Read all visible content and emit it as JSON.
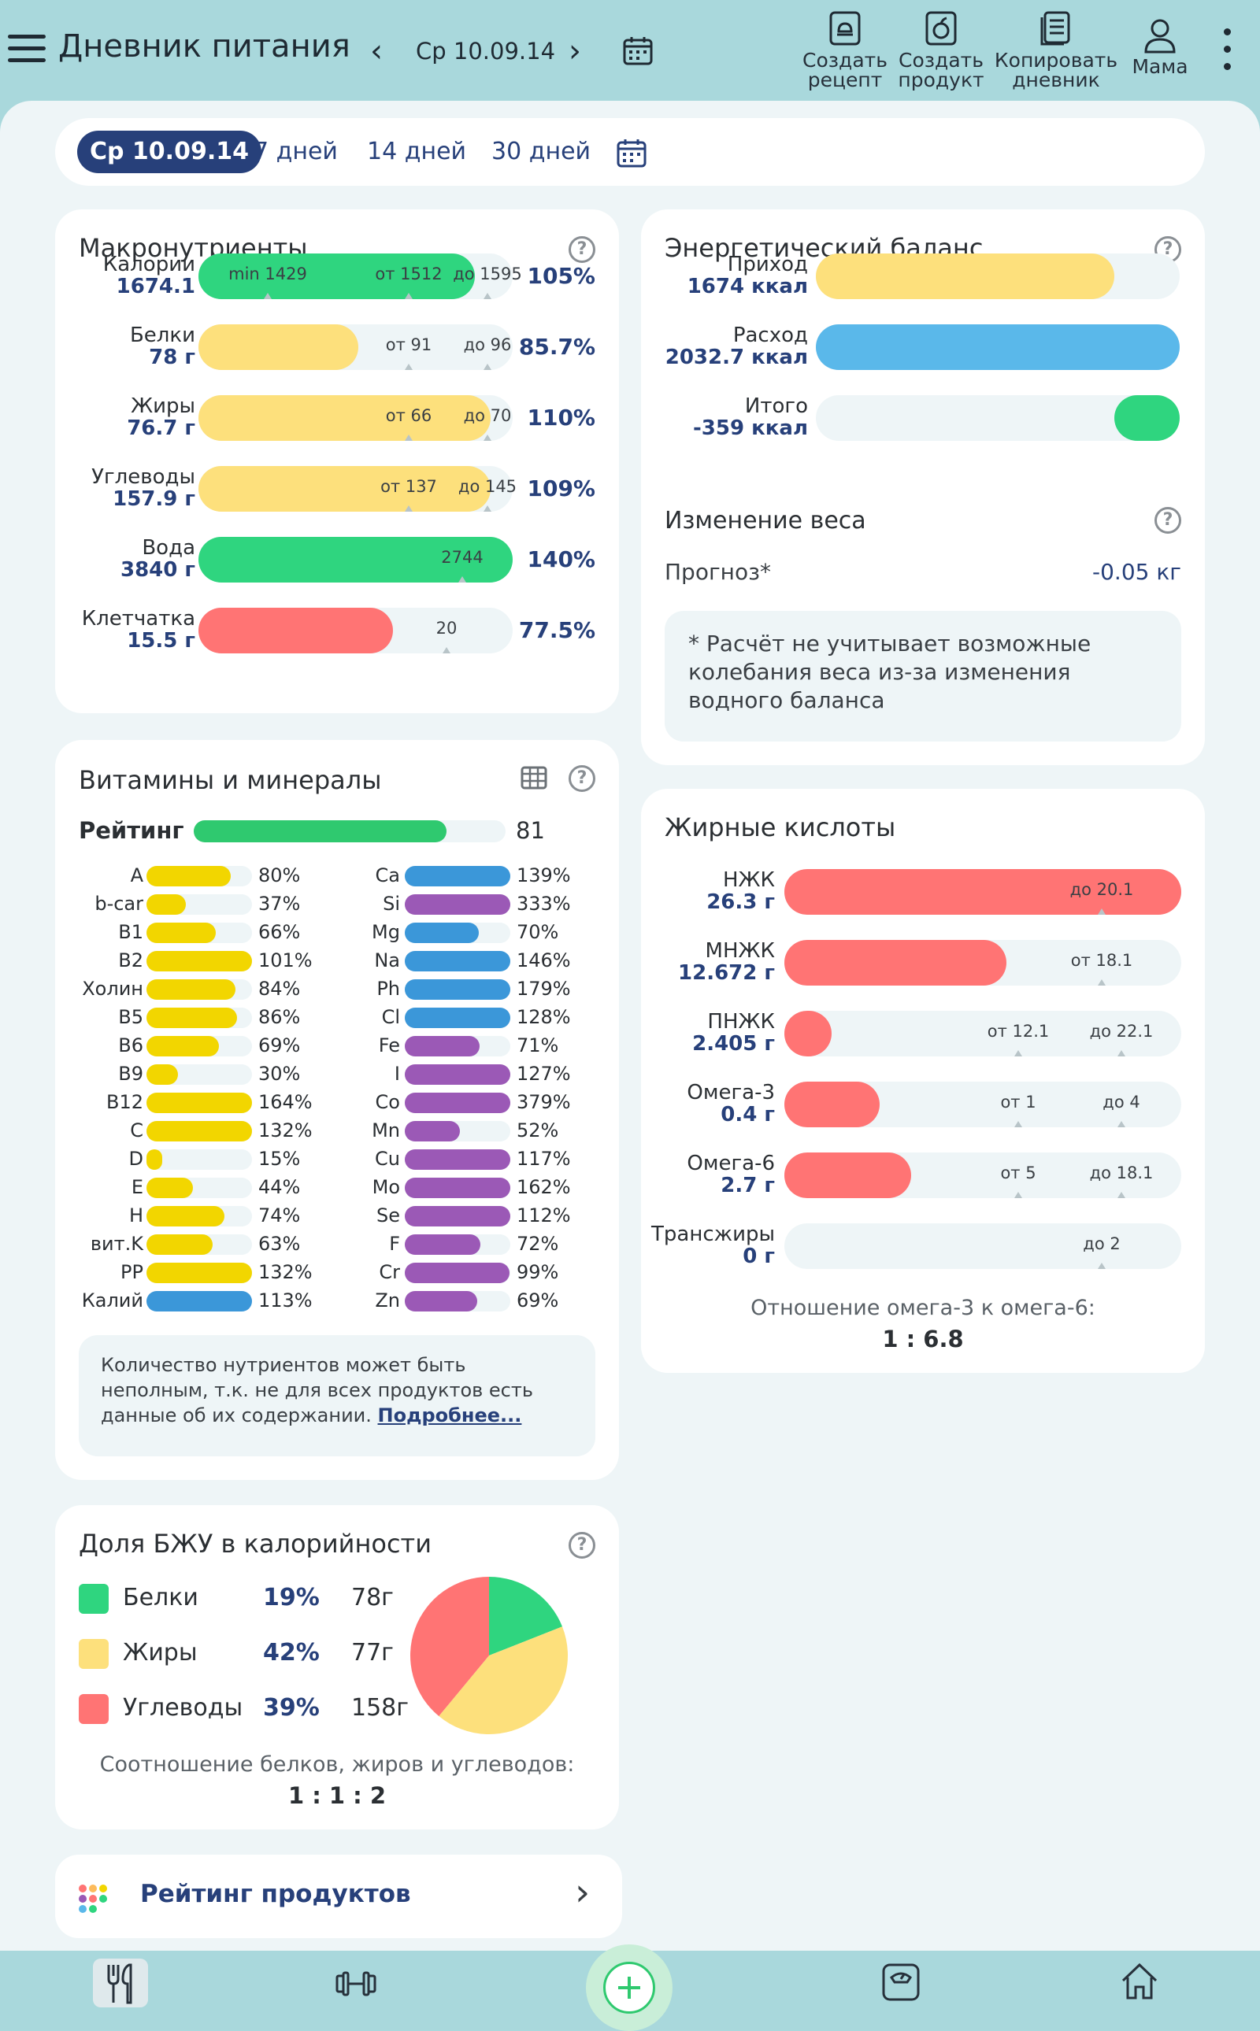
{
  "header": {
    "title": "Дневник питания",
    "date": "Ср 10.09.14",
    "actions": [
      {
        "line1": "Создать",
        "line2": "рецепт"
      },
      {
        "line1": "Создать",
        "line2": "продукт"
      },
      {
        "line1": "Копировать",
        "line2": "дневник"
      }
    ],
    "profile": "Мама"
  },
  "period_tabs": [
    "Ср 10.09.14",
    "7 дней",
    "14 дней",
    "30 дней"
  ],
  "macros": {
    "title": "Макронутриенты",
    "rows": [
      {
        "name": "Калории",
        "value": "1674.1",
        "percent": "105%",
        "fill": 0.88,
        "color": "#2fd57f",
        "markers": [
          "min 1429",
          "от 1512",
          "до 1595"
        ]
      },
      {
        "name": "Белки",
        "value": "78 г",
        "percent": "85.7%",
        "fill": 0.51,
        "color": "#fde07c",
        "markers": [
          "от 91",
          "до 96"
        ]
      },
      {
        "name": "Жиры",
        "value": "76.7 г",
        "percent": "110%",
        "fill": 0.93,
        "color": "#fde07c",
        "markers": [
          "от 66",
          "до 70"
        ]
      },
      {
        "name": "Углеводы",
        "value": "157.9 г",
        "percent": "109%",
        "fill": 0.93,
        "color": "#fde07c",
        "markers": [
          "от 137",
          "до 145"
        ]
      },
      {
        "name": "Вода",
        "value": "3840 г",
        "percent": "140%",
        "fill": 1.0,
        "color": "#2fd57f",
        "markers": [
          "2744"
        ]
      },
      {
        "name": "Клетчатка",
        "value": "15.5 г",
        "percent": "77.5%",
        "fill": 0.62,
        "color": "#ff7474",
        "markers": [
          "20"
        ]
      }
    ]
  },
  "energy": {
    "title": "Энергетический баланс",
    "rows": [
      {
        "name": "Приход",
        "value": "1674 ккал",
        "fill": 0.82,
        "color": "#fde07c"
      },
      {
        "name": "Расход",
        "value": "2032.7 ккал",
        "fill": 1.0,
        "color": "#5ab8ea"
      },
      {
        "name": "Итого",
        "value": "-359 ккал",
        "fill": 0.18,
        "color": "#2fd57f"
      }
    ],
    "weight_title": "Изменение веса",
    "forecast_label": "Прогноз*",
    "forecast_value": "-0.05 кг",
    "note": "* Расчёт не учитывает возможные колебания веса из-за изменения водного баланса"
  },
  "vitamins": {
    "title": "Витамины и минералы",
    "rating_label": "Рейтинг",
    "rating_value": "81",
    "rating_fill": 0.81,
    "left": [
      {
        "name": "A",
        "pct": "80%",
        "fill": 0.8,
        "color": "#f2d600"
      },
      {
        "name": "b-car",
        "pct": "37%",
        "fill": 0.37,
        "color": "#f2d600"
      },
      {
        "name": "B1",
        "pct": "66%",
        "fill": 0.66,
        "color": "#f2d600"
      },
      {
        "name": "B2",
        "pct": "101%",
        "fill": 1.0,
        "color": "#f2d600"
      },
      {
        "name": "Холин",
        "pct": "84%",
        "fill": 0.84,
        "color": "#f2d600"
      },
      {
        "name": "B5",
        "pct": "86%",
        "fill": 0.86,
        "color": "#f2d600"
      },
      {
        "name": "B6",
        "pct": "69%",
        "fill": 0.69,
        "color": "#f2d600"
      },
      {
        "name": "B9",
        "pct": "30%",
        "fill": 0.3,
        "color": "#f2d600"
      },
      {
        "name": "B12",
        "pct": "164%",
        "fill": 1.0,
        "color": "#f2d600"
      },
      {
        "name": "C",
        "pct": "132%",
        "fill": 1.0,
        "color": "#f2d600"
      },
      {
        "name": "D",
        "pct": "15%",
        "fill": 0.15,
        "color": "#f2d600"
      },
      {
        "name": "E",
        "pct": "44%",
        "fill": 0.44,
        "color": "#f2d600"
      },
      {
        "name": "H",
        "pct": "74%",
        "fill": 0.74,
        "color": "#f2d600"
      },
      {
        "name": "вит.K",
        "pct": "63%",
        "fill": 0.63,
        "color": "#f2d600"
      },
      {
        "name": "PP",
        "pct": "132%",
        "fill": 1.0,
        "color": "#f2d600"
      },
      {
        "name": "Калий",
        "pct": "113%",
        "fill": 1.0,
        "color": "#3b97d9"
      }
    ],
    "right": [
      {
        "name": "Ca",
        "pct": "139%",
        "fill": 1.0,
        "color": "#3b97d9"
      },
      {
        "name": "Si",
        "pct": "333%",
        "fill": 1.0,
        "color": "#9b59b6"
      },
      {
        "name": "Mg",
        "pct": "70%",
        "fill": 0.7,
        "color": "#3b97d9"
      },
      {
        "name": "Na",
        "pct": "146%",
        "fill": 1.0,
        "color": "#3b97d9"
      },
      {
        "name": "Ph",
        "pct": "179%",
        "fill": 1.0,
        "color": "#3b97d9"
      },
      {
        "name": "Cl",
        "pct": "128%",
        "fill": 1.0,
        "color": "#3b97d9"
      },
      {
        "name": "Fe",
        "pct": "71%",
        "fill": 0.71,
        "color": "#9b59b6"
      },
      {
        "name": "I",
        "pct": "127%",
        "fill": 1.0,
        "color": "#9b59b6"
      },
      {
        "name": "Co",
        "pct": "379%",
        "fill": 1.0,
        "color": "#9b59b6"
      },
      {
        "name": "Mn",
        "pct": "52%",
        "fill": 0.52,
        "color": "#9b59b6"
      },
      {
        "name": "Cu",
        "pct": "117%",
        "fill": 1.0,
        "color": "#9b59b6"
      },
      {
        "name": "Mo",
        "pct": "162%",
        "fill": 1.0,
        "color": "#9b59b6"
      },
      {
        "name": "Se",
        "pct": "112%",
        "fill": 1.0,
        "color": "#9b59b6"
      },
      {
        "name": "F",
        "pct": "72%",
        "fill": 0.72,
        "color": "#9b59b6"
      },
      {
        "name": "Cr",
        "pct": "99%",
        "fill": 0.99,
        "color": "#9b59b6"
      },
      {
        "name": "Zn",
        "pct": "69%",
        "fill": 0.69,
        "color": "#9b59b6"
      }
    ],
    "note_text": "Количество нутриентов может быть неполным, т.к. не для всех продуктов есть данные об их содержании.",
    "note_link": "Подробнее..."
  },
  "fatty": {
    "title": "Жирные кислоты",
    "rows": [
      {
        "name": "НЖК",
        "value": "26.3 г",
        "fill": 1.0,
        "markers": [
          "до 20.1"
        ]
      },
      {
        "name": "МНЖК",
        "value": "12.672 г",
        "fill": 0.56,
        "markers": [
          "от 18.1"
        ]
      },
      {
        "name": "ПНЖК",
        "value": "2.405 г",
        "fill": 0.12,
        "markers": [
          "от 12.1",
          "до 22.1"
        ]
      },
      {
        "name": "Омега-3",
        "value": "0.4 г",
        "fill": 0.24,
        "markers": [
          "от 1",
          "до 4"
        ]
      },
      {
        "name": "Омега-6",
        "value": "2.7 г",
        "fill": 0.32,
        "markers": [
          "от 5",
          "до 18.1"
        ]
      },
      {
        "name": "Трансжиры",
        "value": "0 г",
        "fill": 0.0,
        "markers": [
          "до 2"
        ]
      }
    ],
    "color": "#ff7474",
    "ratio_label": "Отношение омега-3 к омега-6:",
    "ratio_value": "1 : 6.8"
  },
  "bju": {
    "title": "Доля БЖУ в калорийности",
    "items": [
      {
        "name": "Белки",
        "pct": "19%",
        "grams": "78г",
        "color": "#2fd57f",
        "share": 19
      },
      {
        "name": "Жиры",
        "pct": "42%",
        "grams": "77г",
        "color": "#fde07c",
        "share": 42
      },
      {
        "name": "Углеводы",
        "pct": "39%",
        "grams": "158г",
        "color": "#ff7474",
        "share": 39
      }
    ],
    "ratio_label": "Соотношение белков, жиров и углеводов:",
    "ratio_value": "1 : 1 : 2"
  },
  "rating_products": "Рейтинг продуктов",
  "bottom_nav": [
    "fork-knife-icon",
    "dumbbell-icon",
    "add-icon",
    "scale-icon",
    "home-icon"
  ]
}
